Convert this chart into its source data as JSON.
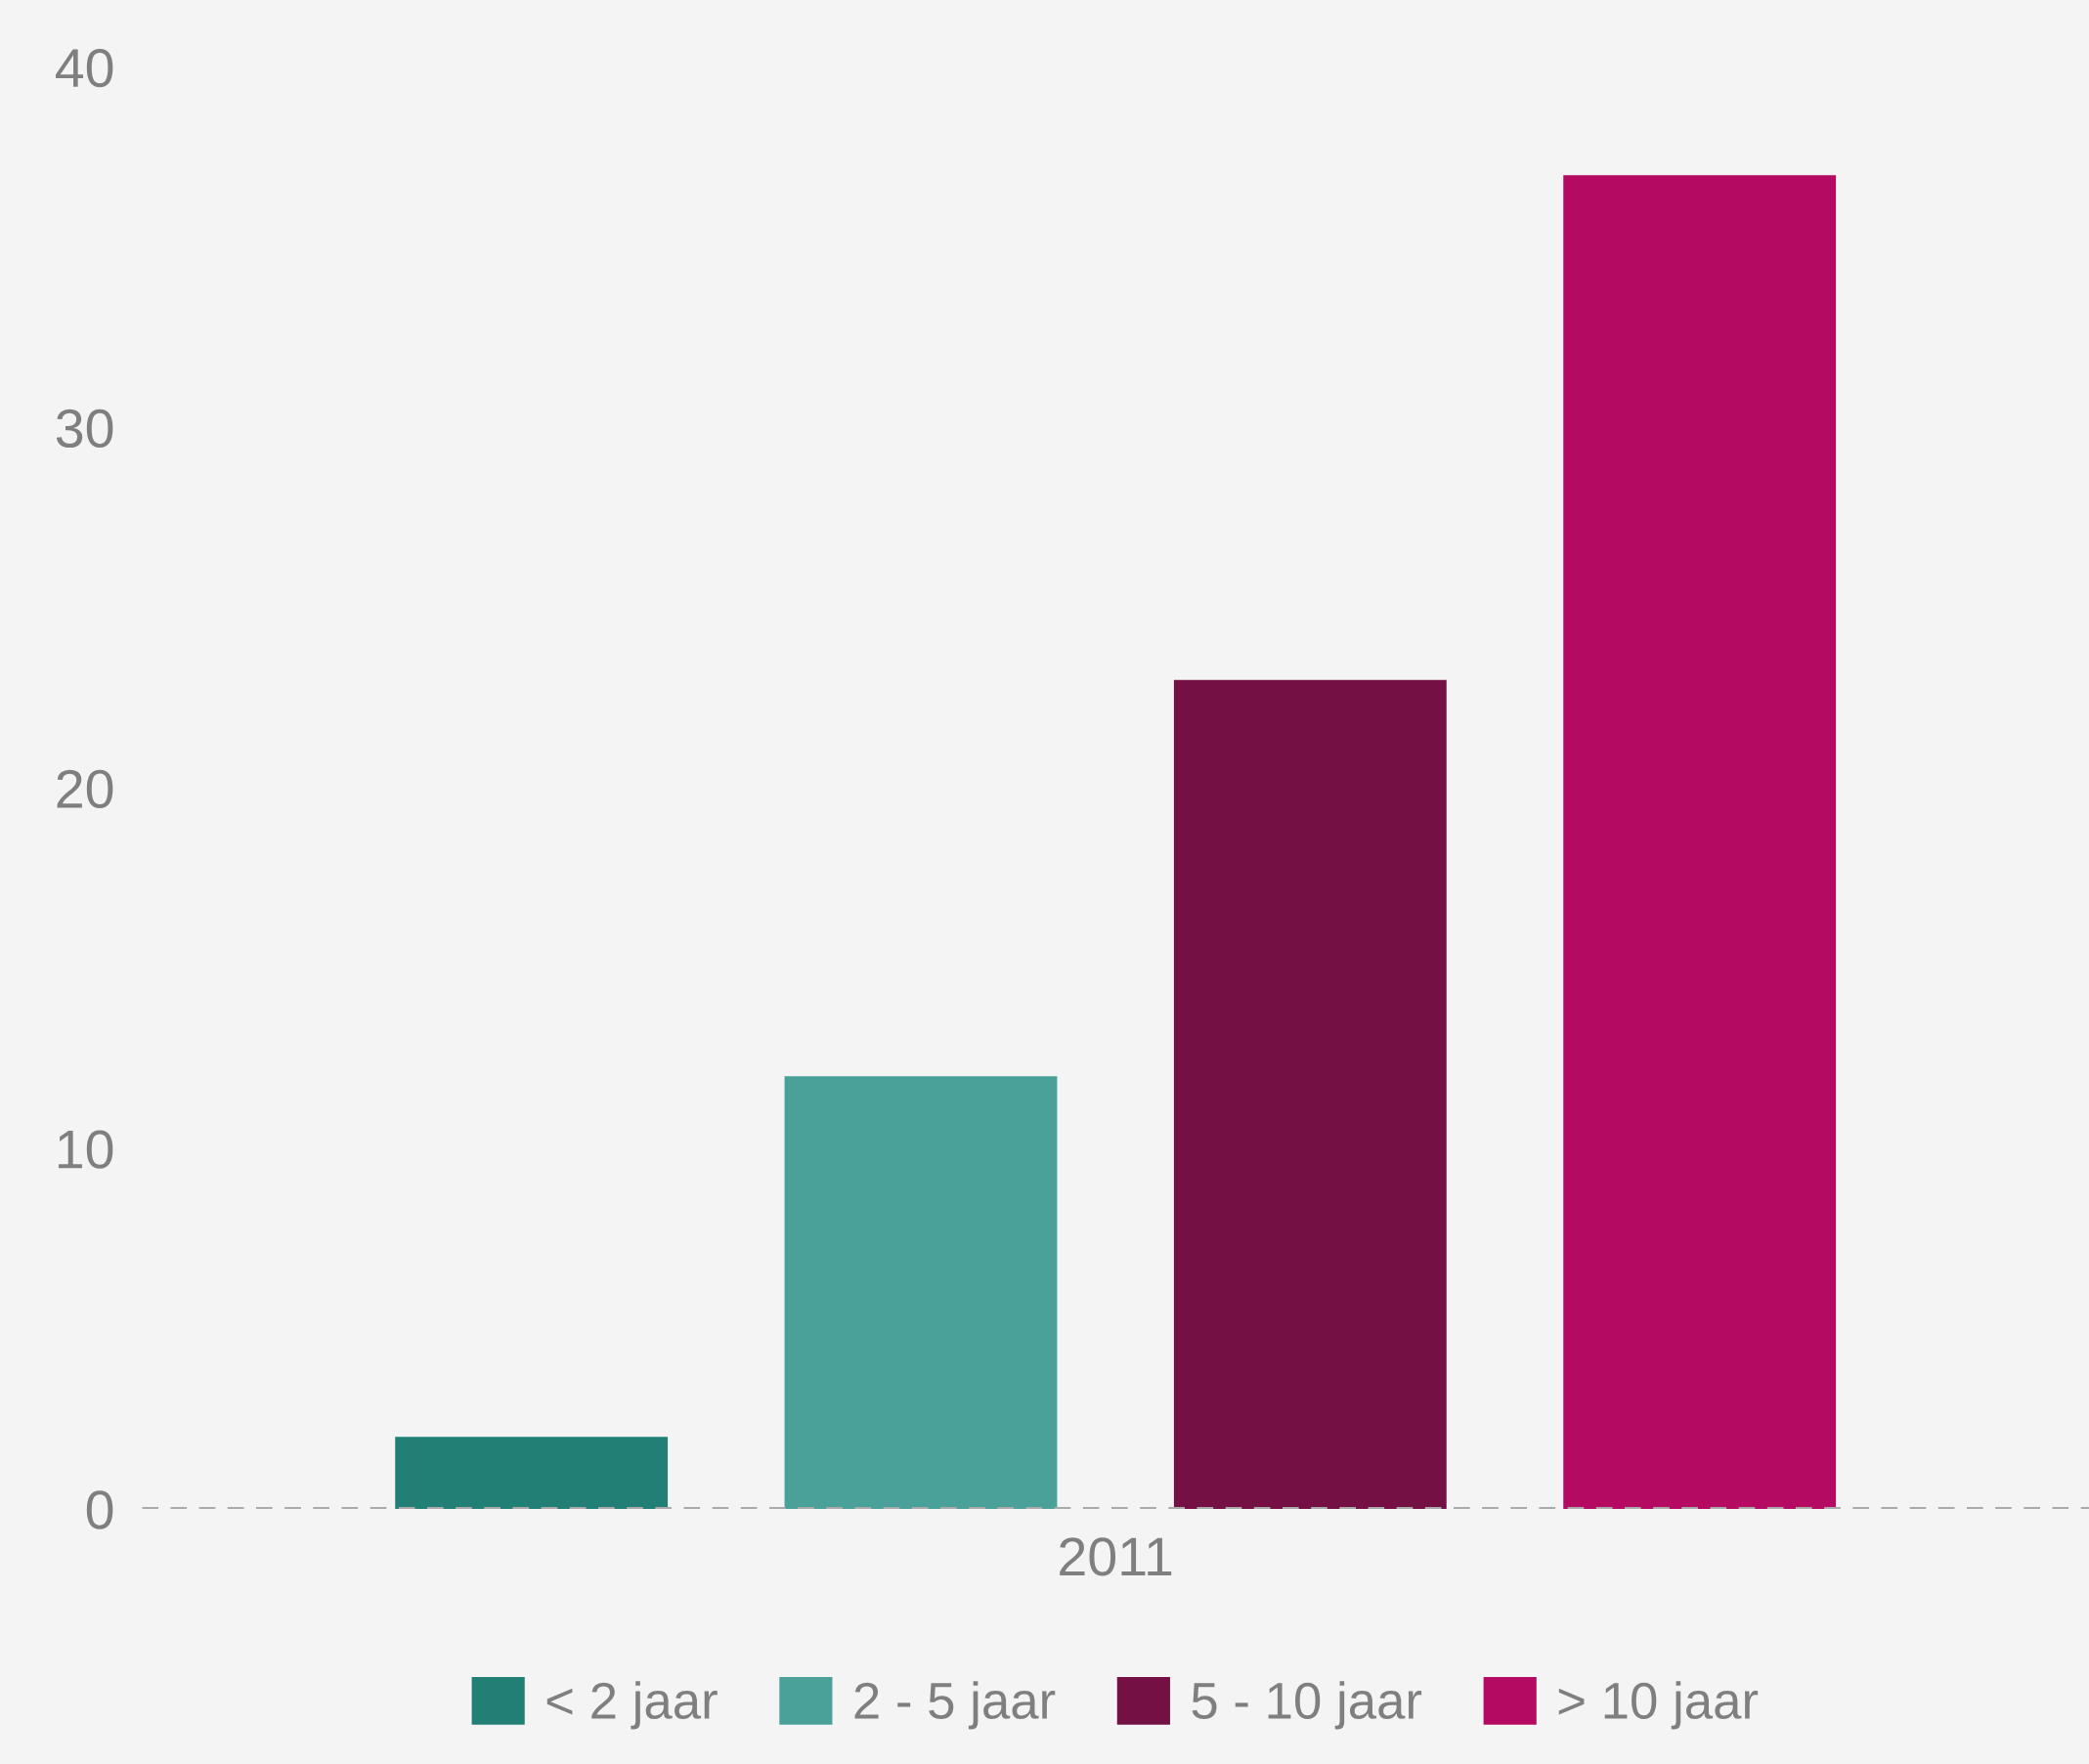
{
  "chart_data": {
    "type": "bar",
    "categories": [
      "2011"
    ],
    "series": [
      {
        "name": "< 2 jaar",
        "color": "#217f75",
        "values": [
          2
        ]
      },
      {
        "name": "2 - 5 jaar",
        "color": "#4aa199",
        "values": [
          12
        ]
      },
      {
        "name": "5 - 10 jaar",
        "color": "#741043",
        "values": [
          23
        ]
      },
      {
        "name": "> 10 jaar",
        "color": "#b50a62",
        "values": [
          37
        ]
      }
    ],
    "ylim": [
      0,
      40
    ],
    "yticks": [
      0,
      10,
      20,
      30,
      40
    ],
    "grid": false,
    "legend": "bottom",
    "ref_lines": [
      {
        "axis": "y",
        "value": 0,
        "color": "#aaaaaa",
        "line_style": "dashed"
      }
    ]
  }
}
